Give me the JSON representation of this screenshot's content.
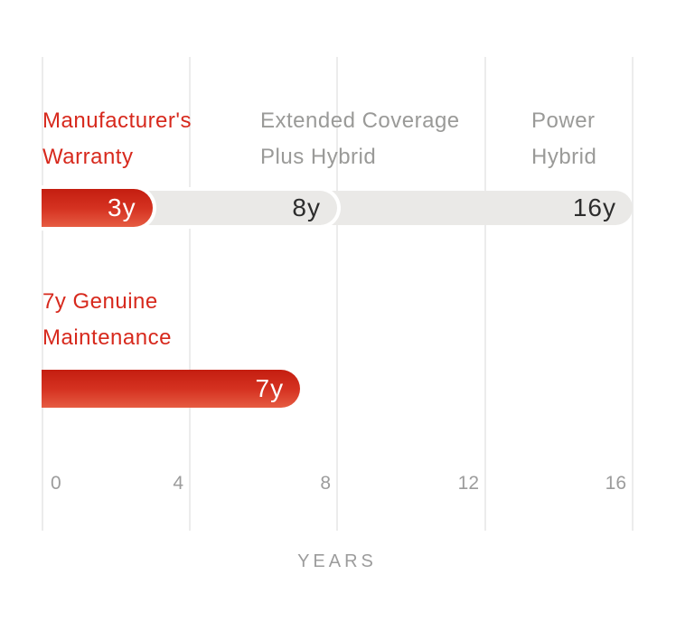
{
  "colors": {
    "background": "#ffffff",
    "red_text": "#d7291d",
    "gray_text": "#9a9a98",
    "dark_value_text": "#2d2d2d",
    "tick_text": "#9c9c9c",
    "gridline": "#ececec",
    "pill_gray": "#eae9e7",
    "bar_red_gradient_top": "#c41e10",
    "bar_red_gradient_bottom": "#e65c42",
    "value_on_red": "#ffffff"
  },
  "chart_data": {
    "type": "bar",
    "orientation": "horizontal",
    "unit": "years",
    "title": "",
    "xlabel": "YEARS",
    "xlim": [
      0,
      16
    ],
    "x_ticks": [
      "0",
      "4",
      "8",
      "12",
      "16"
    ],
    "grid": true,
    "rows": [
      {
        "name": "warranty-coverage",
        "segments": [
          {
            "label": "Manufacturer's Warranty",
            "label_line1": "Manufacturer's",
            "label_line2": "Warranty",
            "years": 3,
            "value_label": "3y",
            "style": "red"
          },
          {
            "label": "Extended Coverage Plus Hybrid",
            "label_line1": "Extended Coverage",
            "label_line2": "Plus Hybrid",
            "years": 8,
            "value_label": "8y",
            "style": "gray"
          },
          {
            "label": "Power Hybrid",
            "label_line1": "Power",
            "label_line2": "Hybrid",
            "years": 16,
            "value_label": "16y",
            "style": "gray"
          }
        ]
      },
      {
        "name": "genuine-maintenance",
        "segments": [
          {
            "label": "7y Genuine Maintenance",
            "label_line1": "7y Genuine",
            "label_line2": "Maintenance",
            "years": 7,
            "value_label": "7y",
            "style": "red"
          }
        ]
      }
    ]
  }
}
